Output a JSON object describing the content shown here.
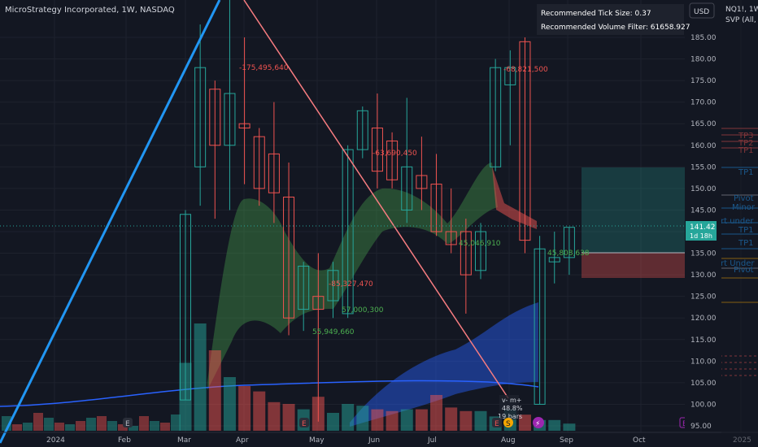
{
  "header": {
    "title": "MicroStrategy Incorporated, 1W, NASDAQ",
    "currency": "USD"
  },
  "overlay_table": {
    "row1": "Recommended Tick Size: 0.37",
    "row2": "Recommended Volume Filter: 61658.927"
  },
  "side_panel": {
    "line1": "NQ1!, 1W",
    "line2": "SVP (All, T"
  },
  "price_axis": {
    "ticks": [
      "185.00",
      "180.00",
      "175.00",
      "170.00",
      "165.00",
      "160.00",
      "155.00",
      "150.00",
      "145.00",
      "140.00",
      "135.00",
      "130.00",
      "125.00",
      "120.00",
      "115.00",
      "110.00",
      "105.00",
      "100.00",
      "95.00"
    ],
    "current_price": "141.42",
    "countdown": "1d 18h"
  },
  "time_axis": {
    "ticks": [
      "2024",
      "Feb",
      "Mar",
      "Apr",
      "May",
      "Jun",
      "Jul",
      "Aug",
      "Sep",
      "Oct",
      "2025"
    ]
  },
  "annotations": {
    "a1": "-175,495,640",
    "a2": "-68,821,500",
    "a3": "-63,690,450",
    "a4": "-85,327,470",
    "a5": "57,000,300",
    "a6": "55,949,660",
    "a7": "45,046,910",
    "a8": "45,808,638"
  },
  "right_labels": {
    "tp3": "TP3",
    "tp2": "TP2",
    "tp1a": "TP1",
    "tp1b": "TP1",
    "pivot": "Pivot",
    "minor": "Minor",
    "under1": "rt under",
    "tp1c": "TP1",
    "tp1d": "TP1",
    "under2": "rt Under",
    "pivot2": "Pivot"
  },
  "tooltip": {
    "line1": "v- m+",
    "line2": "48.8%",
    "line3": "19 bars"
  },
  "event_icons": {
    "earnings": "E",
    "split": "S",
    "dividend": "⚡"
  },
  "colors": {
    "bg": "#131722",
    "up": "#26a69a",
    "down": "#ef5350",
    "trend_blue": "#2196f3",
    "trend_red": "#f77c80",
    "band_green": "#4caf50",
    "band_blue": "#2962ff"
  },
  "chart_data": {
    "type": "candlestick",
    "ylim": [
      95,
      187
    ],
    "candles": [
      {
        "date": "2024-02-26",
        "o": 101,
        "h": 145,
        "l": 101,
        "c": 144,
        "v": 38
      },
      {
        "date": "2024-03-04",
        "o": 155,
        "h": 188,
        "l": 146,
        "c": 178,
        "v": 60
      },
      {
        "date": "2024-03-11",
        "o": 173,
        "h": 175,
        "l": 143,
        "c": 160,
        "v": 45
      },
      {
        "date": "2024-03-18",
        "o": 160,
        "h": 200,
        "l": 145,
        "c": 172,
        "v": 30
      },
      {
        "date": "2024-03-25",
        "o": 165,
        "h": 185,
        "l": 151,
        "c": 164,
        "v": 25
      },
      {
        "date": "2024-04-01",
        "o": 162,
        "h": 164,
        "l": 146,
        "c": 150,
        "v": 22
      },
      {
        "date": "2024-04-08",
        "o": 158,
        "h": 170,
        "l": 142,
        "c": 149,
        "v": 16
      },
      {
        "date": "2024-04-15",
        "o": 148,
        "h": 156,
        "l": 116,
        "c": 120,
        "v": 15
      },
      {
        "date": "2024-04-22",
        "o": 122,
        "h": 133,
        "l": 117,
        "c": 132,
        "v": 12
      },
      {
        "date": "2024-04-29",
        "o": 125,
        "h": 135,
        "l": 96,
        "c": 122,
        "v": 19
      },
      {
        "date": "2024-05-06",
        "o": 124,
        "h": 133,
        "l": 120,
        "c": 131,
        "v": 10
      },
      {
        "date": "2024-05-13",
        "o": 121,
        "h": 160,
        "l": 120,
        "c": 159,
        "v": 15
      },
      {
        "date": "2024-05-20",
        "o": 159,
        "h": 169,
        "l": 157,
        "c": 168,
        "v": 14
      },
      {
        "date": "2024-05-27",
        "o": 164,
        "h": 172,
        "l": 150,
        "c": 154,
        "v": 12
      },
      {
        "date": "2024-06-03",
        "o": 161,
        "h": 163,
        "l": 150,
        "c": 152,
        "v": 11
      },
      {
        "date": "2024-06-10",
        "o": 145,
        "h": 171,
        "l": 142,
        "c": 155,
        "v": 12
      },
      {
        "date": "2024-06-17",
        "o": 153,
        "h": 162,
        "l": 145,
        "c": 150,
        "v": 12
      },
      {
        "date": "2024-06-24",
        "o": 151,
        "h": 158,
        "l": 139,
        "c": 140,
        "v": 20
      },
      {
        "date": "2024-07-01",
        "o": 140,
        "h": 150,
        "l": 135,
        "c": 137,
        "v": 13
      },
      {
        "date": "2024-07-08",
        "o": 140,
        "h": 143,
        "l": 121,
        "c": 130,
        "v": 11
      },
      {
        "date": "2024-07-15",
        "o": 131,
        "h": 142,
        "l": 129,
        "c": 140,
        "v": 11
      },
      {
        "date": "2024-07-22",
        "o": 155,
        "h": 180,
        "l": 154,
        "c": 178,
        "v": 8
      },
      {
        "date": "2024-07-29",
        "o": 174,
        "h": 182,
        "l": 160,
        "c": 178,
        "v": 12
      },
      {
        "date": "2024-08-05",
        "o": 184,
        "h": 185,
        "l": 135,
        "c": 138,
        "v": 9
      },
      {
        "date": "2024-08-12",
        "o": 100,
        "h": 139,
        "l": 100,
        "c": 136,
        "v": 6
      },
      {
        "date": "2024-08-19",
        "o": 133,
        "h": 140,
        "l": 128,
        "c": 134,
        "v": 6
      },
      {
        "date": "2024-08-26",
        "o": 134,
        "h": 141,
        "l": 130,
        "c": 141,
        "v": 4
      }
    ]
  }
}
